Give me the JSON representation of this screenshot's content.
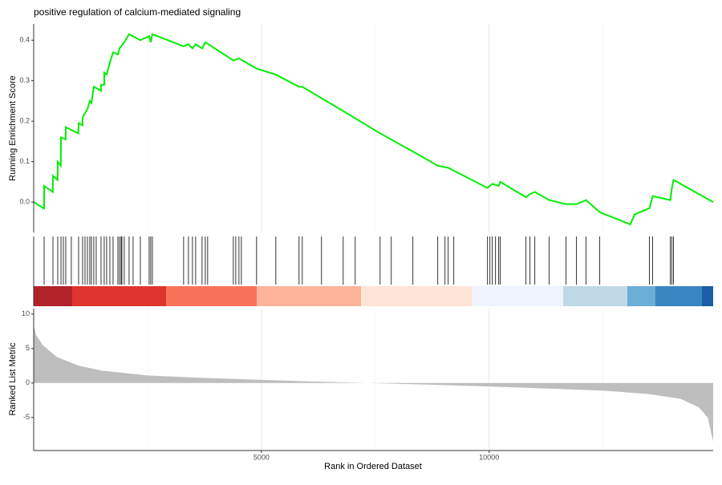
{
  "chart_data": [
    {
      "type": "line",
      "title": "positive regulation of calcium-mediated signaling",
      "ylabel": "Running Enrichment Score",
      "x": [
        0,
        229,
        229,
        420,
        423,
        525,
        528,
        595,
        599,
        700,
        704,
        980,
        986,
        1070,
        1074,
        1180,
        1232,
        1268,
        1320,
        1479,
        1479,
        1549,
        1549,
        1602,
        1673,
        1743,
        1849,
        1884,
        1989,
        2095,
        2342,
        2535,
        2570,
        2606,
        3292,
        3398,
        3486,
        3556,
        3697,
        3768,
        4384,
        4507,
        4894,
        5317,
        5827,
        5898,
        6796,
        7606,
        8327,
        8873,
        9102,
        9965,
        10070,
        10211,
        10246,
        10810,
        10898,
        11004,
        11320,
        11690,
        11919,
        12130,
        12430,
        13100,
        13200,
        13521,
        13592,
        13979,
        14014,
        14049,
        14920
      ],
      "values": [
        0,
        -0.016,
        0.04,
        0.025,
        0.065,
        0.055,
        0.1,
        0.09,
        0.16,
        0.155,
        0.185,
        0.17,
        0.195,
        0.19,
        0.21,
        0.23,
        0.25,
        0.245,
        0.285,
        0.275,
        0.29,
        0.29,
        0.32,
        0.315,
        0.345,
        0.37,
        0.365,
        0.38,
        0.395,
        0.415,
        0.4,
        0.41,
        0.395,
        0.415,
        0.385,
        0.39,
        0.38,
        0.39,
        0.38,
        0.395,
        0.35,
        0.355,
        0.33,
        0.315,
        0.285,
        0.285,
        0.225,
        0.17,
        0.125,
        0.09,
        0.085,
        0.035,
        0.045,
        0.04,
        0.05,
        0.012,
        0.02,
        0.025,
        0.005,
        -0.005,
        -0.005,
        0.005,
        -0.025,
        -0.055,
        -0.03,
        -0.015,
        0.015,
        0.005,
        0.035,
        0.055,
        0
      ],
      "color": "#00ee00",
      "xlim": [
        0,
        14920
      ],
      "ylim": [
        -0.075,
        0.44
      ],
      "yticks": [
        {
          "value": 0,
          "label": "0.0"
        },
        0.1,
        0.2,
        0.3,
        0.4
      ]
    },
    {
      "type": "rug",
      "color": "#000000",
      "xlim": [
        0,
        14920
      ],
      "x": [
        229,
        423,
        528,
        599,
        651,
        704,
        827,
        986,
        1074,
        1127,
        1180,
        1232,
        1268,
        1320,
        1373,
        1479,
        1549,
        1602,
        1673,
        1743,
        1849,
        1884,
        1919,
        1937,
        1989,
        2095,
        2183,
        2342,
        2535,
        2570,
        2606,
        3292,
        3398,
        3486,
        3556,
        3697,
        3768,
        3820,
        4384,
        4437,
        4507,
        4560,
        4894,
        5317,
        5827,
        5898,
        6320,
        6796,
        7060,
        7606,
        7852,
        8327,
        8873,
        9032,
        9102,
        9225,
        9965,
        10018,
        10070,
        10141,
        10211,
        10246,
        10810,
        10898,
        11004,
        11320,
        11690,
        11919,
        12130,
        12430,
        13521,
        13592,
        13979,
        14014,
        14049
      ]
    },
    {
      "type": "area",
      "ylabel": "Ranked List Metric",
      "xlabel": "Rank in Ordered Dataset",
      "color": "#bebebe",
      "x": [
        0,
        50,
        200,
        500,
        1000,
        1500,
        2500,
        3500,
        5000,
        6500,
        7300,
        8500,
        10000,
        11500,
        12500,
        13500,
        14200,
        14600,
        14800,
        14920
      ],
      "values": [
        8.5,
        7,
        5.5,
        3.8,
        2.5,
        1.8,
        1.1,
        0.8,
        0.45,
        0.15,
        0,
        -0.2,
        -0.5,
        -0.85,
        -1.1,
        -1.6,
        -2.3,
        -3.5,
        -5,
        -8.5
      ],
      "xlim": [
        0,
        14920
      ],
      "ylim": [
        -9.8,
        10.8
      ],
      "yticks": [
        -5,
        0,
        5,
        10
      ],
      "xticks": [
        5000,
        10000
      ],
      "xminor": [
        2500,
        7500,
        12500
      ]
    }
  ]
}
